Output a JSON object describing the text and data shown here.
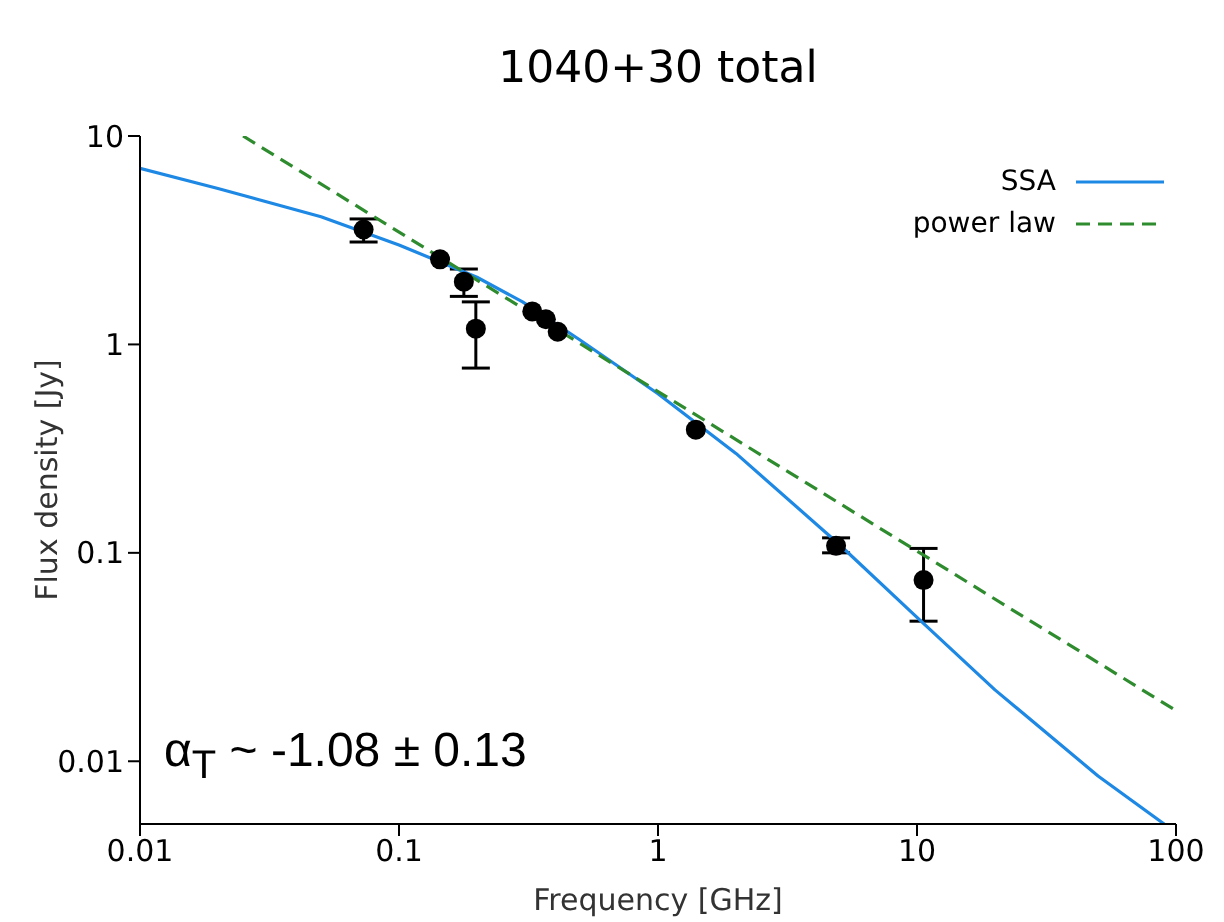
{
  "chart_data": {
    "type": "scatter",
    "title": "1040+30 total",
    "xlabel": "Frequency [GHz]",
    "ylabel": "Flux density [Jy]",
    "log": "xy",
    "xlim": [
      0.01,
      100
    ],
    "ylim": [
      0.005,
      10
    ],
    "xticks": [
      0.01,
      0.1,
      1,
      10,
      100
    ],
    "yticks": [
      0.01,
      0.1,
      1,
      10
    ],
    "grid": false,
    "legend": "top right",
    "marker": "circle",
    "annotations": [
      "α$_{T}$ ~  -1.08 ± 0.13"
    ],
    "series": [
      {
        "color": "#000000",
        "x": [
          0.073,
          0.144,
          0.178,
          0.198,
          0.327,
          0.369,
          0.41,
          1.4,
          4.87,
          10.6
        ],
        "values": [
          3.56,
          2.56,
          2.0,
          1.19,
          1.44,
          1.32,
          1.15,
          0.39,
          0.108,
          0.074
        ],
        "errors": [
          [
            3.1,
            4.0
          ],
          null,
          [
            1.7,
            2.3
          ],
          [
            0.77,
            1.6
          ],
          null,
          null,
          null,
          null,
          [
            0.1,
            0.118
          ],
          [
            0.047,
            0.105
          ]
        ]
      },
      {
        "type": "line",
        "name": "SSA",
        "color": "#1e88e5",
        "marker": "none",
        "line_style": "solid",
        "x": [
          0.01,
          0.02,
          0.05,
          0.1,
          0.2,
          0.3,
          0.5,
          1,
          2,
          5,
          10,
          20,
          50,
          90
        ],
        "values": [
          7.0,
          5.6,
          4.1,
          3.0,
          2.1,
          1.6,
          1.05,
          0.58,
          0.3,
          0.11,
          0.049,
          0.022,
          0.0085,
          0.005
        ]
      },
      {
        "type": "line",
        "name": "power law",
        "color": "#2e8b2e",
        "marker": "none",
        "line_style": "dashed",
        "x": [
          0.025,
          100
        ],
        "values": [
          10,
          0.0175
        ]
      }
    ]
  }
}
